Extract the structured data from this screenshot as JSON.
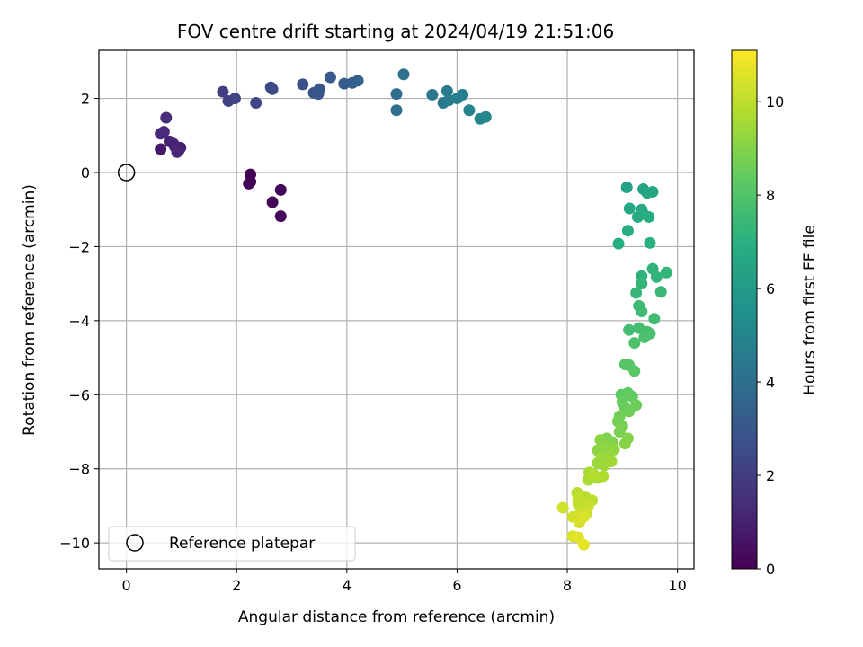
{
  "chart_data": {
    "type": "scatter",
    "title": "FOV centre drift starting at 2024/04/19 21:51:06",
    "xlabel": "Angular distance from reference (arcmin)",
    "ylabel": "Rotation from reference (arcmin)",
    "xlim": [
      -0.5,
      10.3
    ],
    "ylim": [
      -10.7,
      3.3
    ],
    "xticks": [
      0,
      2,
      4,
      6,
      8,
      10
    ],
    "yticks": [
      -10,
      -8,
      -6,
      -4,
      -2,
      0,
      2
    ],
    "grid": true,
    "legend": {
      "position": "lower-left",
      "entries": [
        "Reference platepar"
      ]
    },
    "reference_point": {
      "x": 0,
      "y": 0
    },
    "colorbar": {
      "label": "Hours from first FF file",
      "range": [
        0,
        11.1
      ],
      "ticks": [
        0,
        2,
        4,
        6,
        8,
        10
      ],
      "colormap": "viridis"
    },
    "points": [
      {
        "x": 2.25,
        "y": -0.05,
        "c": 0.0
      },
      {
        "x": 2.22,
        "y": -0.3,
        "c": 0.05
      },
      {
        "x": 2.25,
        "y": -0.25,
        "c": 0.1
      },
      {
        "x": 2.8,
        "y": -0.47,
        "c": 0.15
      },
      {
        "x": 2.65,
        "y": -0.8,
        "c": 0.2
      },
      {
        "x": 2.8,
        "y": -1.18,
        "c": 0.25
      },
      {
        "x": 0.62,
        "y": 0.63,
        "c": 0.8
      },
      {
        "x": 0.95,
        "y": 0.6,
        "c": 0.9
      },
      {
        "x": 0.98,
        "y": 0.67,
        "c": 1.0
      },
      {
        "x": 0.88,
        "y": 0.7,
        "c": 1.05
      },
      {
        "x": 0.78,
        "y": 0.84,
        "c": 1.1
      },
      {
        "x": 0.85,
        "y": 0.78,
        "c": 1.15
      },
      {
        "x": 0.92,
        "y": 0.55,
        "c": 1.2
      },
      {
        "x": 0.68,
        "y": 1.1,
        "c": 1.25
      },
      {
        "x": 0.62,
        "y": 1.05,
        "c": 1.3
      },
      {
        "x": 0.72,
        "y": 1.48,
        "c": 1.35
      },
      {
        "x": 1.75,
        "y": 2.18,
        "c": 2.0
      },
      {
        "x": 1.85,
        "y": 1.93,
        "c": 2.1
      },
      {
        "x": 1.97,
        "y": 2.0,
        "c": 2.2
      },
      {
        "x": 2.35,
        "y": 1.88,
        "c": 2.3
      },
      {
        "x": 2.62,
        "y": 2.3,
        "c": 2.4
      },
      {
        "x": 2.65,
        "y": 2.25,
        "c": 2.5
      },
      {
        "x": 3.2,
        "y": 2.38,
        "c": 2.7
      },
      {
        "x": 3.4,
        "y": 2.15,
        "c": 2.8
      },
      {
        "x": 3.5,
        "y": 2.25,
        "c": 2.9
      },
      {
        "x": 3.48,
        "y": 2.12,
        "c": 3.0
      },
      {
        "x": 3.7,
        "y": 2.57,
        "c": 3.1
      },
      {
        "x": 3.95,
        "y": 2.4,
        "c": 3.2
      },
      {
        "x": 4.1,
        "y": 2.42,
        "c": 3.3
      },
      {
        "x": 4.2,
        "y": 2.48,
        "c": 3.4
      },
      {
        "x": 4.9,
        "y": 2.12,
        "c": 3.9
      },
      {
        "x": 4.9,
        "y": 1.68,
        "c": 4.0
      },
      {
        "x": 5.03,
        "y": 2.65,
        "c": 4.1
      },
      {
        "x": 5.55,
        "y": 2.1,
        "c": 4.3
      },
      {
        "x": 5.75,
        "y": 1.88,
        "c": 4.4
      },
      {
        "x": 5.82,
        "y": 2.2,
        "c": 4.5
      },
      {
        "x": 5.85,
        "y": 1.95,
        "c": 4.6
      },
      {
        "x": 6.0,
        "y": 2.0,
        "c": 4.7
      },
      {
        "x": 6.1,
        "y": 2.1,
        "c": 4.8
      },
      {
        "x": 6.22,
        "y": 1.68,
        "c": 4.9
      },
      {
        "x": 6.42,
        "y": 1.45,
        "c": 5.0
      },
      {
        "x": 6.52,
        "y": 1.5,
        "c": 5.1
      },
      {
        "x": 9.08,
        "y": -0.4,
        "c": 6.3
      },
      {
        "x": 9.38,
        "y": -0.45,
        "c": 6.4
      },
      {
        "x": 9.45,
        "y": -0.55,
        "c": 6.5
      },
      {
        "x": 9.55,
        "y": -0.52,
        "c": 6.55
      },
      {
        "x": 9.13,
        "y": -0.97,
        "c": 6.6
      },
      {
        "x": 9.35,
        "y": -1.0,
        "c": 6.65
      },
      {
        "x": 9.38,
        "y": -1.12,
        "c": 6.7
      },
      {
        "x": 9.28,
        "y": -1.2,
        "c": 6.75
      },
      {
        "x": 9.48,
        "y": -1.2,
        "c": 6.8
      },
      {
        "x": 8.93,
        "y": -1.92,
        "c": 6.9
      },
      {
        "x": 9.1,
        "y": -1.57,
        "c": 6.95
      },
      {
        "x": 9.5,
        "y": -1.9,
        "c": 7.0
      },
      {
        "x": 9.35,
        "y": -2.8,
        "c": 7.1
      },
      {
        "x": 9.55,
        "y": -2.6,
        "c": 7.15
      },
      {
        "x": 9.62,
        "y": -2.82,
        "c": 7.2
      },
      {
        "x": 9.8,
        "y": -2.7,
        "c": 7.25
      },
      {
        "x": 9.35,
        "y": -3.0,
        "c": 7.3
      },
      {
        "x": 9.25,
        "y": -3.25,
        "c": 7.35
      },
      {
        "x": 9.7,
        "y": -3.22,
        "c": 7.4
      },
      {
        "x": 9.3,
        "y": -3.6,
        "c": 7.5
      },
      {
        "x": 9.35,
        "y": -3.75,
        "c": 7.55
      },
      {
        "x": 9.58,
        "y": -3.95,
        "c": 7.6
      },
      {
        "x": 9.12,
        "y": -4.25,
        "c": 7.65
      },
      {
        "x": 9.3,
        "y": -4.2,
        "c": 7.7
      },
      {
        "x": 9.45,
        "y": -4.3,
        "c": 7.75
      },
      {
        "x": 9.5,
        "y": -4.35,
        "c": 7.8
      },
      {
        "x": 9.4,
        "y": -4.45,
        "c": 7.85
      },
      {
        "x": 9.22,
        "y": -4.6,
        "c": 7.9
      },
      {
        "x": 9.05,
        "y": -5.18,
        "c": 8.05
      },
      {
        "x": 9.12,
        "y": -5.2,
        "c": 8.1
      },
      {
        "x": 9.22,
        "y": -5.36,
        "c": 8.15
      },
      {
        "x": 8.98,
        "y": -6.0,
        "c": 8.3
      },
      {
        "x": 9.1,
        "y": -5.95,
        "c": 8.35
      },
      {
        "x": 9.18,
        "y": -6.05,
        "c": 8.4
      },
      {
        "x": 9.0,
        "y": -6.2,
        "c": 8.45
      },
      {
        "x": 9.05,
        "y": -6.35,
        "c": 8.5
      },
      {
        "x": 9.25,
        "y": -6.28,
        "c": 8.55
      },
      {
        "x": 9.12,
        "y": -6.45,
        "c": 8.6
      },
      {
        "x": 8.95,
        "y": -6.58,
        "c": 8.65
      },
      {
        "x": 8.92,
        "y": -6.72,
        "c": 8.7
      },
      {
        "x": 9.0,
        "y": -6.85,
        "c": 8.75
      },
      {
        "x": 8.95,
        "y": -7.0,
        "c": 8.8
      },
      {
        "x": 8.72,
        "y": -7.18,
        "c": 8.9
      },
      {
        "x": 8.82,
        "y": -7.28,
        "c": 8.95
      },
      {
        "x": 9.1,
        "y": -7.18,
        "c": 9.0
      },
      {
        "x": 9.05,
        "y": -7.32,
        "c": 9.05
      },
      {
        "x": 8.6,
        "y": -7.22,
        "c": 9.1
      },
      {
        "x": 8.55,
        "y": -7.5,
        "c": 9.15
      },
      {
        "x": 8.7,
        "y": -7.45,
        "c": 9.2
      },
      {
        "x": 8.85,
        "y": -7.48,
        "c": 9.25
      },
      {
        "x": 8.75,
        "y": -7.62,
        "c": 9.3
      },
      {
        "x": 8.62,
        "y": -7.7,
        "c": 9.35
      },
      {
        "x": 8.55,
        "y": -7.85,
        "c": 9.4
      },
      {
        "x": 8.68,
        "y": -7.9,
        "c": 9.45
      },
      {
        "x": 8.8,
        "y": -7.8,
        "c": 9.5
      },
      {
        "x": 8.4,
        "y": -8.1,
        "c": 9.6
      },
      {
        "x": 8.38,
        "y": -8.3,
        "c": 9.65
      },
      {
        "x": 8.55,
        "y": -8.25,
        "c": 9.7
      },
      {
        "x": 8.65,
        "y": -8.2,
        "c": 9.75
      },
      {
        "x": 8.48,
        "y": -8.15,
        "c": 9.8
      },
      {
        "x": 8.18,
        "y": -8.65,
        "c": 9.9
      },
      {
        "x": 8.32,
        "y": -8.75,
        "c": 9.95
      },
      {
        "x": 8.45,
        "y": -8.85,
        "c": 10.0
      },
      {
        "x": 8.2,
        "y": -8.95,
        "c": 10.05
      },
      {
        "x": 8.2,
        "y": -8.82,
        "c": 10.1
      },
      {
        "x": 8.38,
        "y": -9.0,
        "c": 10.15
      },
      {
        "x": 8.25,
        "y": -9.15,
        "c": 10.2
      },
      {
        "x": 8.35,
        "y": -9.2,
        "c": 10.25
      },
      {
        "x": 7.92,
        "y": -9.05,
        "c": 10.3
      },
      {
        "x": 8.1,
        "y": -9.3,
        "c": 10.35
      },
      {
        "x": 8.22,
        "y": -9.45,
        "c": 10.4
      },
      {
        "x": 8.3,
        "y": -9.3,
        "c": 10.45
      },
      {
        "x": 8.1,
        "y": -9.82,
        "c": 10.55
      },
      {
        "x": 8.2,
        "y": -9.85,
        "c": 10.6
      },
      {
        "x": 8.3,
        "y": -10.05,
        "c": 10.7
      }
    ]
  }
}
